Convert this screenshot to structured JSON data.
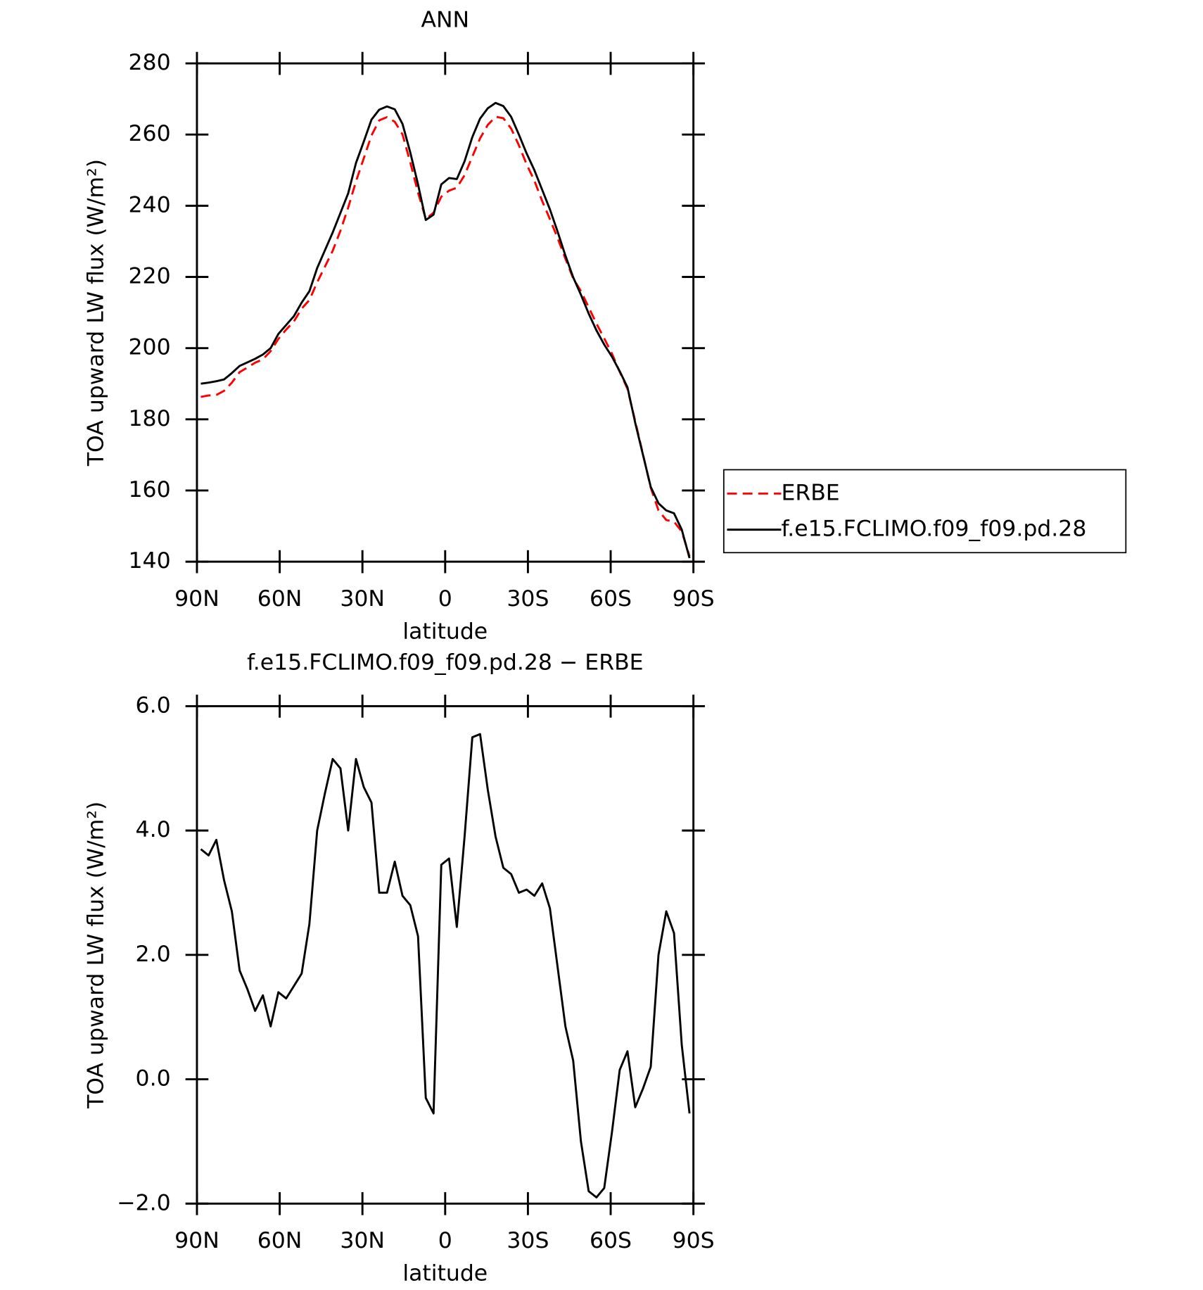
{
  "chart_data": [
    {
      "type": "line",
      "title": "ANN",
      "xlabel": "latitude",
      "ylabel": "TOA upward LW flux (W/m²)",
      "x": [
        88.59,
        85.78,
        82.97,
        80.16,
        77.34,
        74.53,
        71.72,
        68.91,
        66.09,
        63.28,
        60.47,
        57.66,
        54.84,
        52.03,
        49.22,
        46.41,
        43.59,
        40.78,
        37.97,
        35.16,
        32.34,
        29.53,
        26.72,
        23.91,
        21.09,
        18.28,
        15.47,
        12.66,
        9.84,
        7.03,
        4.22,
        1.41,
        -1.41,
        -4.22,
        -7.03,
        -9.84,
        -12.66,
        -15.47,
        -18.28,
        -21.09,
        -23.91,
        -26.72,
        -29.53,
        -32.34,
        -35.16,
        -37.97,
        -40.78,
        -43.59,
        -46.41,
        -49.22,
        -52.03,
        -54.84,
        -57.66,
        -60.47,
        -63.28,
        -66.09,
        -68.91,
        -71.72,
        -74.53,
        -77.34,
        -80.16,
        -82.97,
        -85.78,
        -88.59
      ],
      "series": [
        {
          "name": "ERBE",
          "color": "#ff0000",
          "dashed": true,
          "values": [
            186.3,
            186.7,
            186.85,
            188.0,
            190.3,
            193.25,
            194.55,
            195.9,
            196.85,
            199.15,
            202.6,
            205.2,
            207.5,
            211.1,
            213.5,
            218.5,
            222.9,
            227.35,
            233.0,
            239.5,
            246.85,
            253.3,
            259.75,
            264.0,
            264.9,
            263.6,
            260.05,
            252.2,
            243.7,
            236.3,
            238.05,
            242.55,
            244.25,
            245.05,
            248.6,
            253.8,
            258.95,
            262.75,
            265.0,
            264.6,
            261.7,
            257.0,
            251.65,
            247.05,
            241.35,
            236.25,
            230.9,
            225.15,
            219.6,
            216.0,
            211.5,
            206.9,
            202.75,
            198.45,
            193.35,
            188.55,
            179.45,
            170.15,
            160.8,
            154.4,
            151.7,
            151.25,
            148.45,
            141.55
          ]
        },
        {
          "name": "f.e15.FCLIMO.f09_f09.pd.28",
          "color": "#000000",
          "dashed": false,
          "values": [
            190.0,
            190.3,
            190.7,
            191.2,
            193.0,
            195.0,
            196.0,
            197.0,
            198.2,
            200.0,
            204.0,
            206.5,
            209.0,
            212.8,
            216.0,
            222.5,
            227.5,
            232.5,
            238.0,
            243.5,
            252.0,
            258.0,
            264.2,
            267.0,
            267.9,
            267.1,
            263.0,
            255.0,
            246.0,
            236.0,
            237.5,
            246.0,
            247.8,
            247.5,
            252.5,
            259.3,
            264.5,
            267.4,
            268.9,
            268.0,
            265.0,
            260.0,
            254.7,
            250.0,
            244.5,
            239.0,
            232.7,
            226.0,
            219.9,
            215.0,
            209.7,
            205.0,
            201.0,
            197.6,
            193.5,
            189.0,
            179.0,
            170.0,
            161.0,
            156.4,
            154.4,
            153.6,
            149.0,
            141.0
          ]
        }
      ],
      "xlim": [
        90,
        -90
      ],
      "xticks": [
        {
          "value": 90,
          "label": "90N"
        },
        {
          "value": 60,
          "label": "60N"
        },
        {
          "value": 30,
          "label": "30N"
        },
        0,
        {
          "value": -30,
          "label": "30S"
        },
        {
          "value": -60,
          "label": "60S"
        },
        {
          "value": -90,
          "label": "90S"
        }
      ],
      "ylim": [
        140,
        280
      ],
      "yticks": [
        140,
        160,
        180,
        200,
        220,
        240,
        260,
        280
      ],
      "legend": "right"
    },
    {
      "type": "line",
      "title": "f.e15.FCLIMO.f09_f09.pd.28 − ERBE",
      "xlabel": "latitude",
      "ylabel": "TOA upward LW flux (W/m²)",
      "x": [
        88.59,
        85.78,
        82.97,
        80.16,
        77.34,
        74.53,
        71.72,
        68.91,
        66.09,
        63.28,
        60.47,
        57.66,
        54.84,
        52.03,
        49.22,
        46.41,
        43.59,
        40.78,
        37.97,
        35.16,
        32.34,
        29.53,
        26.72,
        23.91,
        21.09,
        18.28,
        15.47,
        12.66,
        9.84,
        7.03,
        4.22,
        1.41,
        -1.41,
        -4.22,
        -7.03,
        -9.84,
        -12.66,
        -15.47,
        -18.28,
        -21.09,
        -23.91,
        -26.72,
        -29.53,
        -32.34,
        -35.16,
        -37.97,
        -40.78,
        -43.59,
        -46.41,
        -49.22,
        -52.03,
        -54.84,
        -57.66,
        -60.47,
        -63.28,
        -66.09,
        -68.91,
        -71.72,
        -74.53,
        -77.34,
        -80.16,
        -82.97,
        -85.78,
        -88.59
      ],
      "values": [
        3.7,
        3.6,
        3.85,
        3.2,
        2.7,
        1.75,
        1.45,
        1.1,
        1.35,
        0.85,
        1.4,
        1.3,
        1.5,
        1.7,
        2.5,
        4.0,
        4.6,
        5.15,
        5.0,
        4.0,
        5.15,
        4.7,
        4.45,
        3.0,
        3.0,
        3.5,
        2.95,
        2.8,
        2.3,
        -0.3,
        -0.55,
        3.45,
        3.55,
        2.45,
        3.9,
        5.5,
        5.55,
        4.65,
        3.9,
        3.4,
        3.3,
        3.0,
        3.05,
        2.95,
        3.15,
        2.75,
        1.8,
        0.85,
        0.3,
        -1.0,
        -1.8,
        -1.9,
        -1.75,
        -0.85,
        0.15,
        0.45,
        -0.45,
        -0.15,
        0.2,
        2.0,
        2.7,
        2.35,
        0.55,
        -0.55
      ],
      "color": "#000000",
      "xlim": [
        90,
        -90
      ],
      "xticks": [
        {
          "value": 90,
          "label": "90N"
        },
        {
          "value": 60,
          "label": "60N"
        },
        {
          "value": 30,
          "label": "30N"
        },
        0,
        {
          "value": -30,
          "label": "30S"
        },
        {
          "value": -60,
          "label": "60S"
        },
        {
          "value": -90,
          "label": "90S"
        }
      ],
      "ylim": [
        -2,
        6
      ],
      "yticks": [
        {
          "value": -2,
          "label": "−2.0"
        },
        {
          "value": 0,
          "label": "0.0"
        },
        {
          "value": 2,
          "label": "2.0"
        },
        {
          "value": 4,
          "label": "4.0"
        },
        {
          "value": 6,
          "label": "6.0"
        }
      ]
    }
  ]
}
